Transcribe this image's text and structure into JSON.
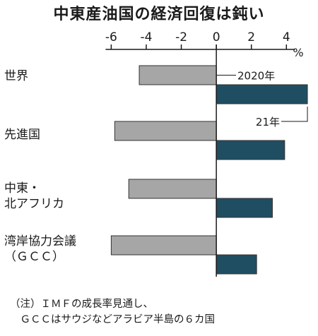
{
  "chart_data": {
    "type": "bar",
    "orientation": "horizontal",
    "title": "中東産油国の経済回復は鈍い",
    "unit": "%",
    "categories": [
      "世界",
      "先進国",
      "中東・\n北アフリカ",
      "湾岸協力会議\n（ＧＣＣ）"
    ],
    "series": [
      {
        "name": "2020年",
        "color": "#a6a6a6",
        "values": [
          -4.4,
          -5.8,
          -5.0,
          -6.0
        ]
      },
      {
        "name": "21年",
        "color": "#1f4e63",
        "values": [
          5.2,
          3.9,
          3.2,
          2.3
        ]
      }
    ],
    "xlim": [
      -6.5,
      5.4
    ],
    "xticks": [
      "-6",
      "-4",
      "-2",
      "0",
      "2",
      "4"
    ],
    "grid": false,
    "note": "（注）ＩＭＦの成長率見通し、\n　ＧＣＣはサウジなどアラビア半島の６カ国"
  }
}
